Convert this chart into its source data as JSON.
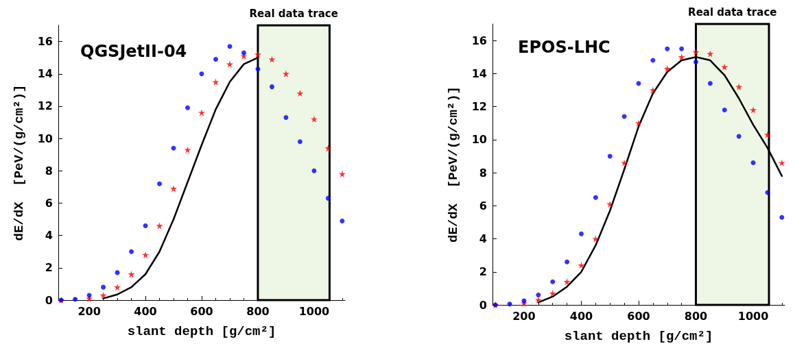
{
  "chart_data": [
    {
      "type": "scatter",
      "title": "QGSJetII-04",
      "xlabel": "slant depth [g/cm²]",
      "ylabel": "dE/dX  [PeV/(g/cm²)]",
      "xlim": [
        90,
        1110
      ],
      "ylim": [
        0,
        17
      ],
      "xticks": [
        200,
        400,
        600,
        800,
        1000
      ],
      "yticks": [
        0,
        2,
        4,
        6,
        8,
        10,
        12,
        14,
        16
      ],
      "grid": false,
      "legend": false,
      "bands": [
        {
          "axis": "x",
          "from": 800,
          "to": 1055,
          "label": "Real data trace",
          "color": "#eef7e6"
        }
      ],
      "series": [
        {
          "type": "line",
          "color": "#000000",
          "marker": "none",
          "line_style": "solid",
          "x": [
            250,
            300,
            350,
            400,
            450,
            500,
            550,
            600,
            650,
            700,
            750,
            800
          ],
          "values": [
            0.1,
            0.35,
            0.8,
            1.6,
            3.0,
            5.0,
            7.3,
            9.6,
            11.8,
            13.5,
            14.6,
            15.0
          ]
        },
        {
          "color": "#ff0000",
          "marker": "star",
          "x": [
            100,
            150,
            200,
            250,
            300,
            350,
            400,
            450,
            500,
            550,
            600,
            650,
            700,
            750,
            800,
            850,
            900,
            950,
            1000,
            1050,
            1100
          ],
          "values": [
            0,
            null,
            0.1,
            0.3,
            0.8,
            1.6,
            2.8,
            4.6,
            6.9,
            9.3,
            11.6,
            13.5,
            14.6,
            15.1,
            15.2,
            14.9,
            14.0,
            12.8,
            11.2,
            9.4,
            7.8
          ]
        },
        {
          "color": "#0000ff",
          "marker": "circle",
          "x": [
            100,
            150,
            200,
            250,
            300,
            350,
            400,
            450,
            500,
            550,
            600,
            650,
            700,
            750,
            800,
            850,
            900,
            950,
            1000,
            1050,
            1100
          ],
          "values": [
            0,
            0.05,
            0.3,
            0.8,
            1.7,
            3.0,
            4.6,
            7.2,
            9.4,
            11.9,
            14.0,
            14.9,
            15.7,
            15.3,
            14.3,
            13.2,
            11.3,
            9.8,
            8.0,
            6.3,
            4.9
          ]
        }
      ]
    },
    {
      "type": "scatter",
      "title": "EPOS-LHC",
      "xlabel": "slant depth [g/cm²]",
      "ylabel": "dE/dX  [PeV/(g/cm²)]",
      "xlim": [
        90,
        1110
      ],
      "ylim": [
        0,
        17
      ],
      "xticks": [
        200,
        400,
        600,
        800,
        1000
      ],
      "yticks": [
        0,
        2,
        4,
        6,
        8,
        10,
        12,
        14,
        16
      ],
      "grid": false,
      "legend": false,
      "bands": [
        {
          "axis": "x",
          "from": 800,
          "to": 1055,
          "label": "Real data trace",
          "color": "#eef7e6"
        }
      ],
      "series": [
        {
          "type": "line",
          "color": "#000000",
          "marker": "none",
          "line_style": "solid",
          "x": [
            250,
            300,
            350,
            400,
            450,
            500,
            550,
            600,
            650,
            700,
            750,
            800,
            850,
            900,
            950,
            1000,
            1050,
            1100
          ],
          "values": [
            0.15,
            0.5,
            1.1,
            2.0,
            3.6,
            5.7,
            8.2,
            10.8,
            12.8,
            14.1,
            14.8,
            15.0,
            14.8,
            13.9,
            12.5,
            10.9,
            9.5,
            7.8
          ]
        },
        {
          "color": "#ff0000",
          "marker": "star",
          "x": [
            100,
            150,
            200,
            250,
            300,
            350,
            400,
            450,
            500,
            550,
            600,
            650,
            700,
            750,
            800,
            850,
            900,
            950,
            1000,
            1050,
            1100
          ],
          "values": [
            0,
            null,
            0.1,
            0.3,
            0.7,
            1.4,
            2.4,
            4.0,
            6.1,
            8.6,
            11.0,
            13.0,
            14.3,
            15.0,
            15.3,
            15.2,
            14.4,
            13.2,
            11.8,
            10.3,
            8.6
          ]
        },
        {
          "color": "#0000ff",
          "marker": "circle",
          "x": [
            100,
            150,
            200,
            250,
            300,
            350,
            400,
            450,
            500,
            550,
            600,
            650,
            700,
            750,
            800,
            850,
            900,
            950,
            1000,
            1050,
            1100
          ],
          "values": [
            0,
            0.05,
            0.25,
            0.6,
            1.4,
            2.6,
            4.3,
            6.5,
            9.0,
            11.4,
            13.4,
            14.8,
            15.5,
            15.5,
            14.7,
            13.4,
            11.8,
            10.2,
            8.6,
            6.8,
            5.3
          ]
        }
      ]
    }
  ]
}
